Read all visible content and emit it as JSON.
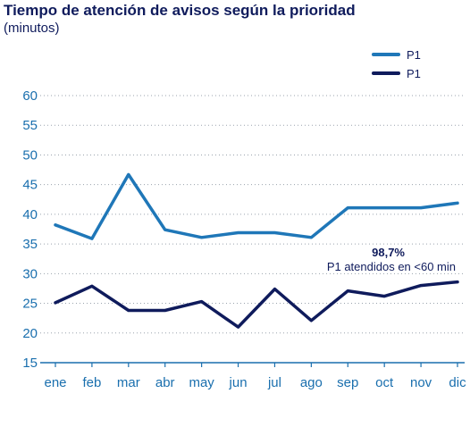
{
  "chart_data": {
    "type": "line",
    "title": "Tiempo de atención de avisos según la prioridad",
    "subtitle": "(minutos)",
    "categories": [
      "ene",
      "feb",
      "mar",
      "abr",
      "may",
      "jun",
      "jul",
      "ago",
      "sep",
      "oct",
      "nov",
      "dic"
    ],
    "yticks": [
      "60",
      "55",
      "50",
      "45",
      "40",
      "35",
      "30",
      "25",
      "20",
      "15"
    ],
    "ylim": [
      15,
      60
    ],
    "grid": true,
    "legend_position": "top-right",
    "series": [
      {
        "name": "P1",
        "color": "#1f77b8",
        "values": [
          38.2,
          35.9,
          46.7,
          37.4,
          36.1,
          36.9,
          36.9,
          36.1,
          41.1,
          41.1,
          41.1,
          41.9
        ]
      },
      {
        "name": "P1",
        "color": "#0f1b5c",
        "values": [
          25.1,
          27.9,
          23.8,
          23.8,
          25.3,
          21.0,
          27.4,
          22.1,
          27.1,
          26.2,
          28.0,
          28.6
        ]
      }
    ],
    "annotation": {
      "value": "98,7%",
      "text": "P1 atendidos en <60 min"
    }
  }
}
